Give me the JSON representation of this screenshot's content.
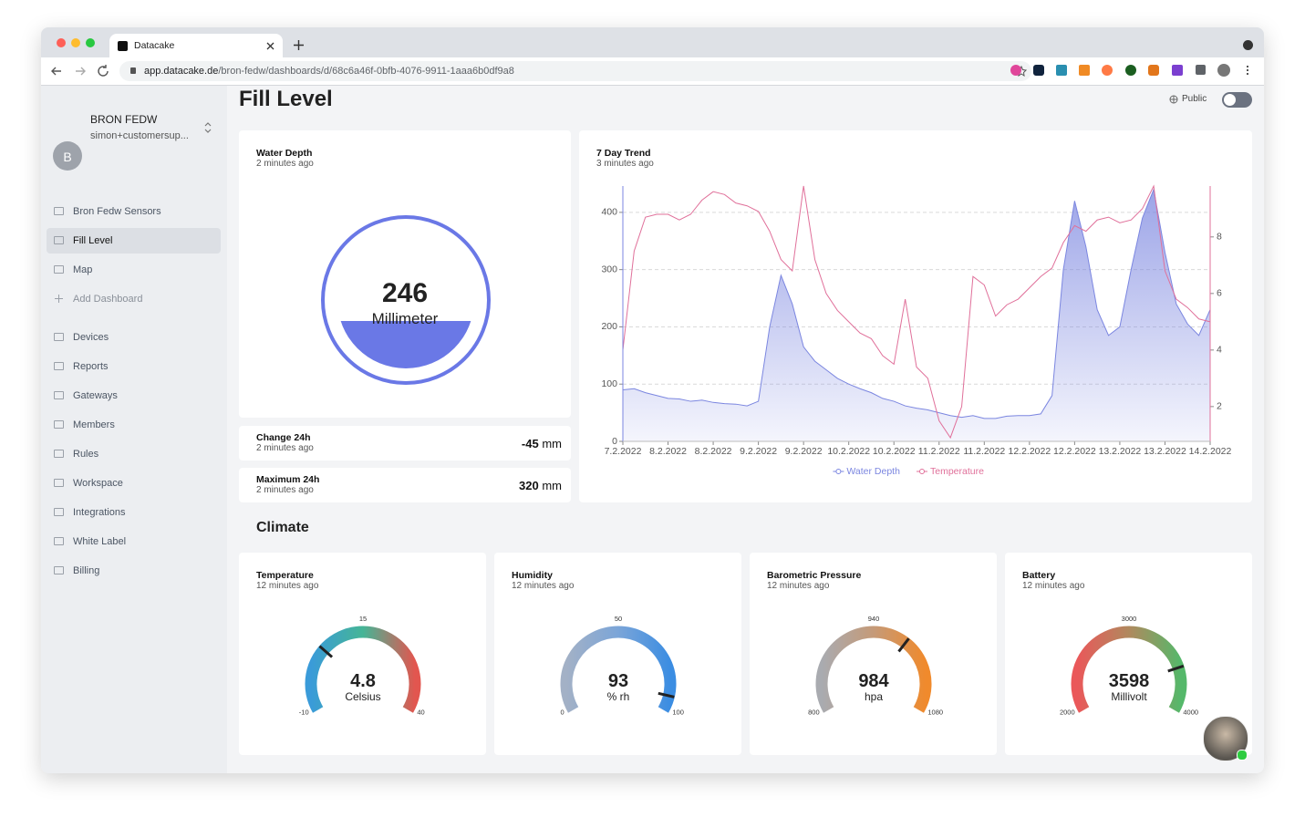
{
  "browser": {
    "tab_title": "Datacake",
    "url_host": "app.datacake.de",
    "url_path": "/bron-fedw/dashboards/d/68c6a46f-0bfb-4076-9911-1aaa6b0df9a8"
  },
  "sidebar": {
    "avatar_letter": "B",
    "workspace": "BRON FEDW",
    "user": "simon+customersup...",
    "nav": [
      "Bron Fedw Sensors",
      "Fill Level",
      "Map",
      "Add Dashboard",
      "Devices",
      "Reports",
      "Gateways",
      "Members",
      "Rules",
      "Workspace",
      "Integrations",
      "White Label",
      "Billing"
    ]
  },
  "page": {
    "title": "Fill Level",
    "visibility": "Public"
  },
  "water_depth": {
    "title": "Water Depth",
    "updated": "2 minutes ago",
    "value": 246,
    "unit": "Millimeter"
  },
  "stats": [
    {
      "title": "Change 24h",
      "updated": "2 minutes ago",
      "value": -45,
      "unit": "mm"
    },
    {
      "title": "Maximum 24h",
      "updated": "2 minutes ago",
      "value": 320,
      "unit": "mm"
    }
  ],
  "chart_data": {
    "type": "line",
    "title": "7 Day Trend",
    "subtitle": "3 minutes ago",
    "x": [
      0,
      0.25,
      0.5,
      0.75,
      1,
      1.25,
      1.5,
      1.75,
      2,
      2.25,
      2.5,
      2.75,
      3,
      3.25,
      3.5,
      3.75,
      4,
      4.25,
      4.5,
      4.75,
      5,
      5.25,
      5.5,
      5.75,
      6,
      6.25,
      6.5,
      6.75,
      7,
      7.25,
      7.5,
      7.75,
      8,
      8.25,
      8.5,
      8.75,
      9,
      9.25,
      9.5,
      9.75,
      10,
      10.25,
      10.5,
      10.75,
      11,
      11.25,
      11.5,
      11.75,
      12,
      12.25,
      12.5,
      12.75,
      13
    ],
    "series": [
      {
        "name": "Water Depth",
        "color": "#7b86e0",
        "fill": true,
        "values": [
          90,
          92,
          85,
          80,
          75,
          74,
          70,
          72,
          68,
          66,
          65,
          62,
          70,
          200,
          290,
          240,
          165,
          140,
          125,
          110,
          100,
          92,
          85,
          75,
          70,
          62,
          58,
          55,
          50,
          45,
          42,
          45,
          40,
          40,
          44,
          45,
          45,
          48,
          80,
          300,
          420,
          340,
          230,
          185,
          200,
          300,
          390,
          440,
          330,
          240,
          205,
          185,
          230
        ]
      },
      {
        "name": "Temperature",
        "color": "#e0709a",
        "axis": "y2",
        "values": [
          4,
          7.5,
          8.7,
          8.8,
          8.8,
          8.6,
          8.8,
          9.3,
          9.6,
          9.5,
          9.2,
          9.1,
          8.9,
          8.2,
          7.2,
          6.8,
          9.8,
          7.2,
          6,
          5.4,
          5,
          4.6,
          4.4,
          3.8,
          3.5,
          5.8,
          3.4,
          3,
          1.5,
          0.9,
          2,
          6.6,
          6.3,
          5.2,
          5.6,
          5.8,
          6.2,
          6.6,
          6.9,
          7.8,
          8.4,
          8.2,
          8.6,
          8.7,
          8.5,
          8.6,
          9,
          9.8,
          6.8,
          5.8,
          5.5,
          5.1,
          5
        ]
      }
    ],
    "xlim": [
      0,
      13
    ],
    "xticks": [
      {
        "value": 0,
        "label": "7.2.2022"
      },
      {
        "value": 1,
        "label": "8.2.2022"
      },
      {
        "value": 2,
        "label": "8.2.2022"
      },
      {
        "value": 3,
        "label": "9.2.2022"
      },
      {
        "value": 4,
        "label": "9.2.2022"
      },
      {
        "value": 5,
        "label": "10.2.2022"
      },
      {
        "value": 6,
        "label": "10.2.2022"
      },
      {
        "value": 7,
        "label": "11.2.2022"
      },
      {
        "value": 8,
        "label": "11.2.2022"
      },
      {
        "value": 9,
        "label": "12.2.2022"
      },
      {
        "value": 10,
        "label": "12.2.2022"
      },
      {
        "value": 11,
        "label": "13.2.2022"
      },
      {
        "value": 12,
        "label": "13.2.2022"
      },
      {
        "value": 13,
        "label": "14.2.2022"
      }
    ],
    "ylim": [
      0,
      446
    ],
    "yticks": [
      0,
      100,
      200,
      300,
      400
    ],
    "y2lim": [
      0.77,
      9.8
    ],
    "y2ticks": [
      2,
      4,
      6,
      8
    ],
    "grid": true,
    "legend": "bottom"
  },
  "climate": {
    "title": "Climate",
    "gauges": [
      {
        "title": "Temperature",
        "updated": "12 minutes ago",
        "value": 4.8,
        "unit": "Celsius",
        "min": -10,
        "mid": 15,
        "max": 40,
        "colors": [
          "#3a9bd9",
          "#45b596",
          "#e2564f"
        ]
      },
      {
        "title": "Humidity",
        "updated": "12 minutes ago",
        "value": 93,
        "unit": "% rh",
        "min": 0,
        "mid": 50,
        "max": 100,
        "colors": [
          "#a3b1c6",
          "#7ba5d8",
          "#3b8de2"
        ]
      },
      {
        "title": "Barometric Pressure",
        "updated": "12 minutes ago",
        "value": 984,
        "unit": "hpa",
        "min": 800,
        "mid": 940,
        "max": 1080,
        "colors": [
          "#a9abb0",
          "#c59a78",
          "#f08a2c"
        ]
      },
      {
        "title": "Battery",
        "updated": "12 minutes ago",
        "value": 3598,
        "unit": "Millivolt",
        "min": 2000,
        "mid": 3000,
        "max": 4000,
        "colors": [
          "#ea585a",
          "#b0895e",
          "#55b86a"
        ]
      }
    ]
  }
}
